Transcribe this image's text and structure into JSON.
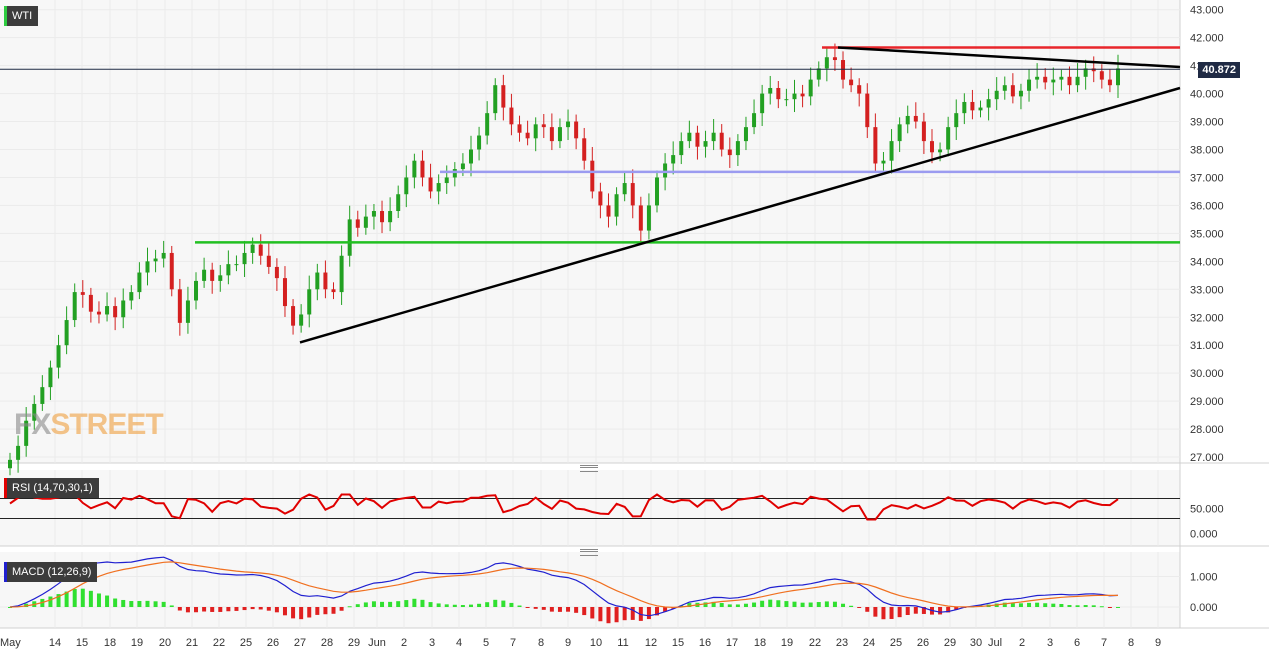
{
  "chart_data": [
    {
      "type": "candlestick",
      "series_label": "WTI",
      "last_price": "40.872",
      "y_ticks": [
        "43.000",
        "42.000",
        "41.000",
        "40.000",
        "39.000",
        "38.000",
        "37.000",
        "36.000",
        "35.000",
        "34.000",
        "33.000",
        "32.000",
        "31.000",
        "30.000",
        "29.000",
        "28.000",
        "27.000"
      ],
      "ylim": [
        26.8,
        43.3
      ],
      "x_ticks": [
        "May",
        "14",
        "15",
        "18",
        "19",
        "20",
        "21",
        "22",
        "25",
        "26",
        "27",
        "28",
        "29",
        "Jun",
        "2",
        "3",
        "4",
        "5",
        "7",
        "8",
        "9",
        "10",
        "11",
        "12",
        "15",
        "16",
        "17",
        "18",
        "19",
        "22",
        "23",
        "24",
        "25",
        "26",
        "29",
        "30",
        "Jul",
        "2",
        "3",
        "6",
        "7",
        "8",
        "9"
      ],
      "horizontal_levels": [
        {
          "label": "resistance",
          "value": 41.65,
          "color": "#e8262b"
        },
        {
          "label": "support",
          "value": 37.2,
          "color": "#9b9bf0"
        },
        {
          "label": "support",
          "value": 34.68,
          "color": "#22c022"
        }
      ],
      "trendlines": [
        {
          "label": "rising support",
          "from": {
            "date": "27 May",
            "value": 31.1
          },
          "to": {
            "date": "8 Jul",
            "value": 40.2
          }
        },
        {
          "label": "falling resistance",
          "from": {
            "date": "23 Jun",
            "value": 41.65
          },
          "to": {
            "date": "8 Jul",
            "value": 40.95
          }
        }
      ],
      "colors": {
        "up": "#22a022",
        "down": "#d42020"
      }
    },
    {
      "type": "line",
      "title": "RSI (14,70,30,1)",
      "y_ticks": [
        "50.000",
        "0.000"
      ],
      "levels": [
        70,
        30
      ],
      "color": "#e00000"
    },
    {
      "type": "bar",
      "title": "MACD (12,26,9)",
      "y_ticks": [
        "1.000",
        "0.000"
      ],
      "colors": {
        "macd": "#2020d0",
        "signal": "#f07020",
        "hist_pos": "#30e030",
        "hist_neg": "#e02020"
      }
    }
  ],
  "watermark": {
    "fx": "FX",
    "street": "STREET"
  }
}
